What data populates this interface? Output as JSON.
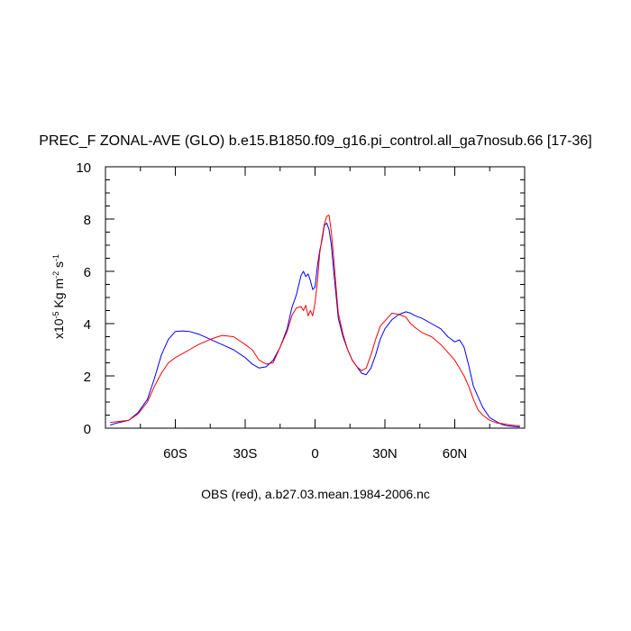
{
  "chart_data": {
    "type": "line",
    "title": "PREC_F ZONAL-AVE (GLO) b.e15.B1850.f09_g16.pi_control.all_ga7nosub.66 [17-36]",
    "ylabel": {
      "base": "x10",
      "exp1": "-5",
      "mid": " Kg m",
      "exp2": "-2",
      "tail": " s",
      "exp3": "-1"
    },
    "footer": "OBS (red), a.b27.03.mean.1984-2006.nc",
    "xlim": [
      -90,
      90
    ],
    "ylim": [
      0,
      10
    ],
    "xticks": [
      {
        "value": -60,
        "label": "60S"
      },
      {
        "value": -30,
        "label": "30S"
      },
      {
        "value": 0,
        "label": "0"
      },
      {
        "value": 30,
        "label": "30N"
      },
      {
        "value": 60,
        "label": "60N"
      }
    ],
    "yticks": [
      {
        "value": 0,
        "label": "0"
      },
      {
        "value": 2,
        "label": "2"
      },
      {
        "value": 4,
        "label": "4"
      },
      {
        "value": 6,
        "label": "6"
      },
      {
        "value": 8,
        "label": "8"
      },
      {
        "value": 10,
        "label": "10"
      }
    ],
    "series": [
      {
        "color": "#0000ff",
        "x": [
          -88,
          -85,
          -80,
          -76,
          -72,
          -69,
          -66,
          -63,
          -60,
          -57,
          -54,
          -50,
          -45,
          -40,
          -35,
          -30,
          -27,
          -24,
          -21,
          -18,
          -15,
          -12,
          -10,
          -8,
          -6,
          -5,
          -4,
          -3,
          -2,
          -1,
          0,
          1,
          2,
          3,
          4,
          5,
          6,
          7,
          8,
          9,
          10,
          12,
          14,
          16,
          18,
          20,
          22,
          24,
          26,
          28,
          30,
          33,
          36,
          39,
          41,
          43,
          46,
          50,
          54,
          57,
          60,
          62,
          64,
          66,
          68,
          70,
          72,
          75,
          78,
          80,
          82,
          84,
          86,
          88
        ],
        "y": [
          0.12,
          0.2,
          0.3,
          0.6,
          1.1,
          1.9,
          2.8,
          3.4,
          3.7,
          3.72,
          3.7,
          3.6,
          3.4,
          3.2,
          3.0,
          2.7,
          2.45,
          2.3,
          2.35,
          2.6,
          3.1,
          3.8,
          4.6,
          5.1,
          5.85,
          6.0,
          5.8,
          5.9,
          5.65,
          5.3,
          5.4,
          6.2,
          6.8,
          7.2,
          7.75,
          7.85,
          7.6,
          7.0,
          6.0,
          5.1,
          4.2,
          3.5,
          3.0,
          2.6,
          2.35,
          2.1,
          2.05,
          2.3,
          2.8,
          3.4,
          3.8,
          4.15,
          4.35,
          4.45,
          4.4,
          4.3,
          4.2,
          4.0,
          3.8,
          3.5,
          3.3,
          3.38,
          3.1,
          2.4,
          1.6,
          1.2,
          0.8,
          0.4,
          0.25,
          0.15,
          0.1,
          0.08,
          0.06,
          0.05
        ]
      },
      {
        "color": "#ff0000",
        "x": [
          -88,
          -85,
          -80,
          -76,
          -72,
          -69,
          -66,
          -63,
          -60,
          -57,
          -54,
          -50,
          -45,
          -40,
          -35,
          -30,
          -27,
          -24,
          -21,
          -18,
          -15,
          -12,
          -10,
          -8,
          -6,
          -5,
          -4,
          -3,
          -2,
          -1,
          0,
          1,
          2,
          3,
          4,
          5,
          6,
          7,
          8,
          9,
          10,
          12,
          14,
          16,
          18,
          20,
          22,
          24,
          26,
          28,
          30,
          33,
          36,
          39,
          41,
          43,
          46,
          50,
          54,
          57,
          60,
          62,
          64,
          66,
          68,
          70,
          72,
          75,
          78,
          80,
          82,
          84,
          86,
          88
        ],
        "y": [
          0.22,
          0.25,
          0.3,
          0.55,
          1.0,
          1.6,
          2.1,
          2.5,
          2.7,
          2.85,
          3.0,
          3.2,
          3.4,
          3.55,
          3.5,
          3.2,
          3.0,
          2.6,
          2.45,
          2.5,
          3.1,
          3.7,
          4.3,
          4.6,
          4.65,
          4.5,
          4.7,
          4.3,
          4.5,
          4.3,
          4.8,
          5.6,
          6.7,
          7.3,
          7.8,
          8.1,
          8.15,
          7.5,
          6.5,
          5.4,
          4.4,
          3.6,
          3.0,
          2.6,
          2.35,
          2.2,
          2.3,
          2.8,
          3.4,
          3.9,
          4.1,
          4.4,
          4.35,
          4.25,
          4.0,
          3.85,
          3.65,
          3.5,
          3.2,
          2.9,
          2.6,
          2.3,
          2.0,
          1.6,
          1.1,
          0.7,
          0.5,
          0.3,
          0.2,
          0.18,
          0.15,
          0.12,
          0.1,
          0.1
        ]
      }
    ]
  }
}
